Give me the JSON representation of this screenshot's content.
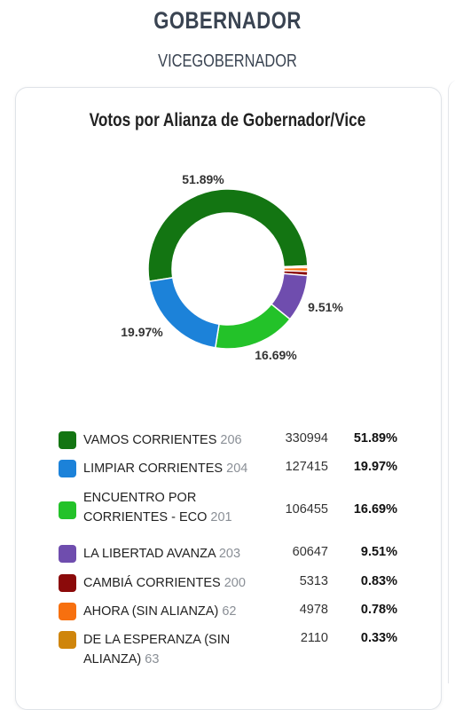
{
  "header": {
    "title": "GOBERNADOR",
    "subtitle": "VICEGOBERNADOR"
  },
  "chart_data": {
    "type": "pie",
    "variant": "donut",
    "title": "Votos por Alianza de Gobernador/Vice",
    "categories": [
      "VAMOS CORRIENTES",
      "LIMPIAR CORRIENTES",
      "ENCUENTRO POR CORRIENTES - ECO",
      "LA LIBERTAD AVANZA",
      "CAMBIÁ CORRIENTES",
      "AHORA (SIN ALIANZA)",
      "DE LA ESPERANZA (SIN ALIANZA)"
    ],
    "codes": [
      "206",
      "204",
      "201",
      "203",
      "200",
      "62",
      "63"
    ],
    "values": [
      330994,
      127415,
      106455,
      60647,
      5313,
      4978,
      2110
    ],
    "percents": [
      51.89,
      19.97,
      16.69,
      9.51,
      0.83,
      0.78,
      0.33
    ],
    "percent_labels": [
      "51.89%",
      "19.97%",
      "16.69%",
      "9.51%",
      "0.83%",
      "0.78%",
      "0.33%"
    ],
    "colors": [
      "#137512",
      "#1c82d9",
      "#23c229",
      "#6f4dae",
      "#8b0a0a",
      "#f7700f",
      "#cf850b"
    ],
    "legend_position": "bottom"
  }
}
